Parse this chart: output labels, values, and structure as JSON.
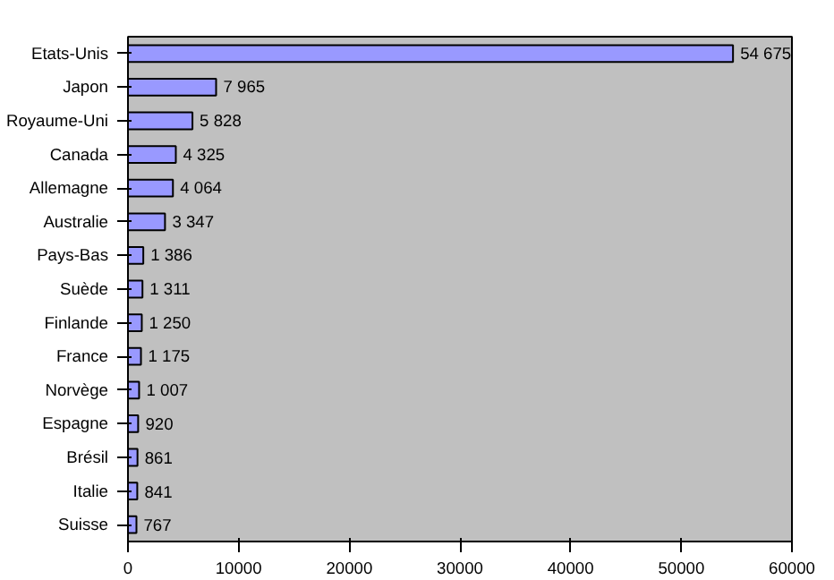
{
  "chart_data": {
    "type": "bar",
    "orientation": "horizontal",
    "categories": [
      "Etats-Unis",
      "Japon",
      "Royaume-Uni",
      "Canada",
      "Allemagne",
      "Australie",
      "Pays-Bas",
      "Suède",
      "Finlande",
      "France",
      "Norvège",
      "Espagne",
      "Brésil",
      "Italie",
      "Suisse"
    ],
    "values": [
      54675,
      7965,
      5828,
      4325,
      4064,
      3347,
      1386,
      1311,
      1250,
      1175,
      1007,
      920,
      861,
      841,
      767
    ],
    "value_labels": [
      "54 675",
      "7 965",
      "5 828",
      "4 325",
      "4 064",
      "3 347",
      "1 386",
      "1 311",
      "1 250",
      "1 175",
      "1 007",
      "920",
      "861",
      "841",
      "767"
    ],
    "color": "#9999ff",
    "xlim": [
      0,
      60000
    ],
    "xticks": [
      0,
      10000,
      20000,
      30000,
      40000,
      50000,
      60000
    ],
    "grid": false
  }
}
